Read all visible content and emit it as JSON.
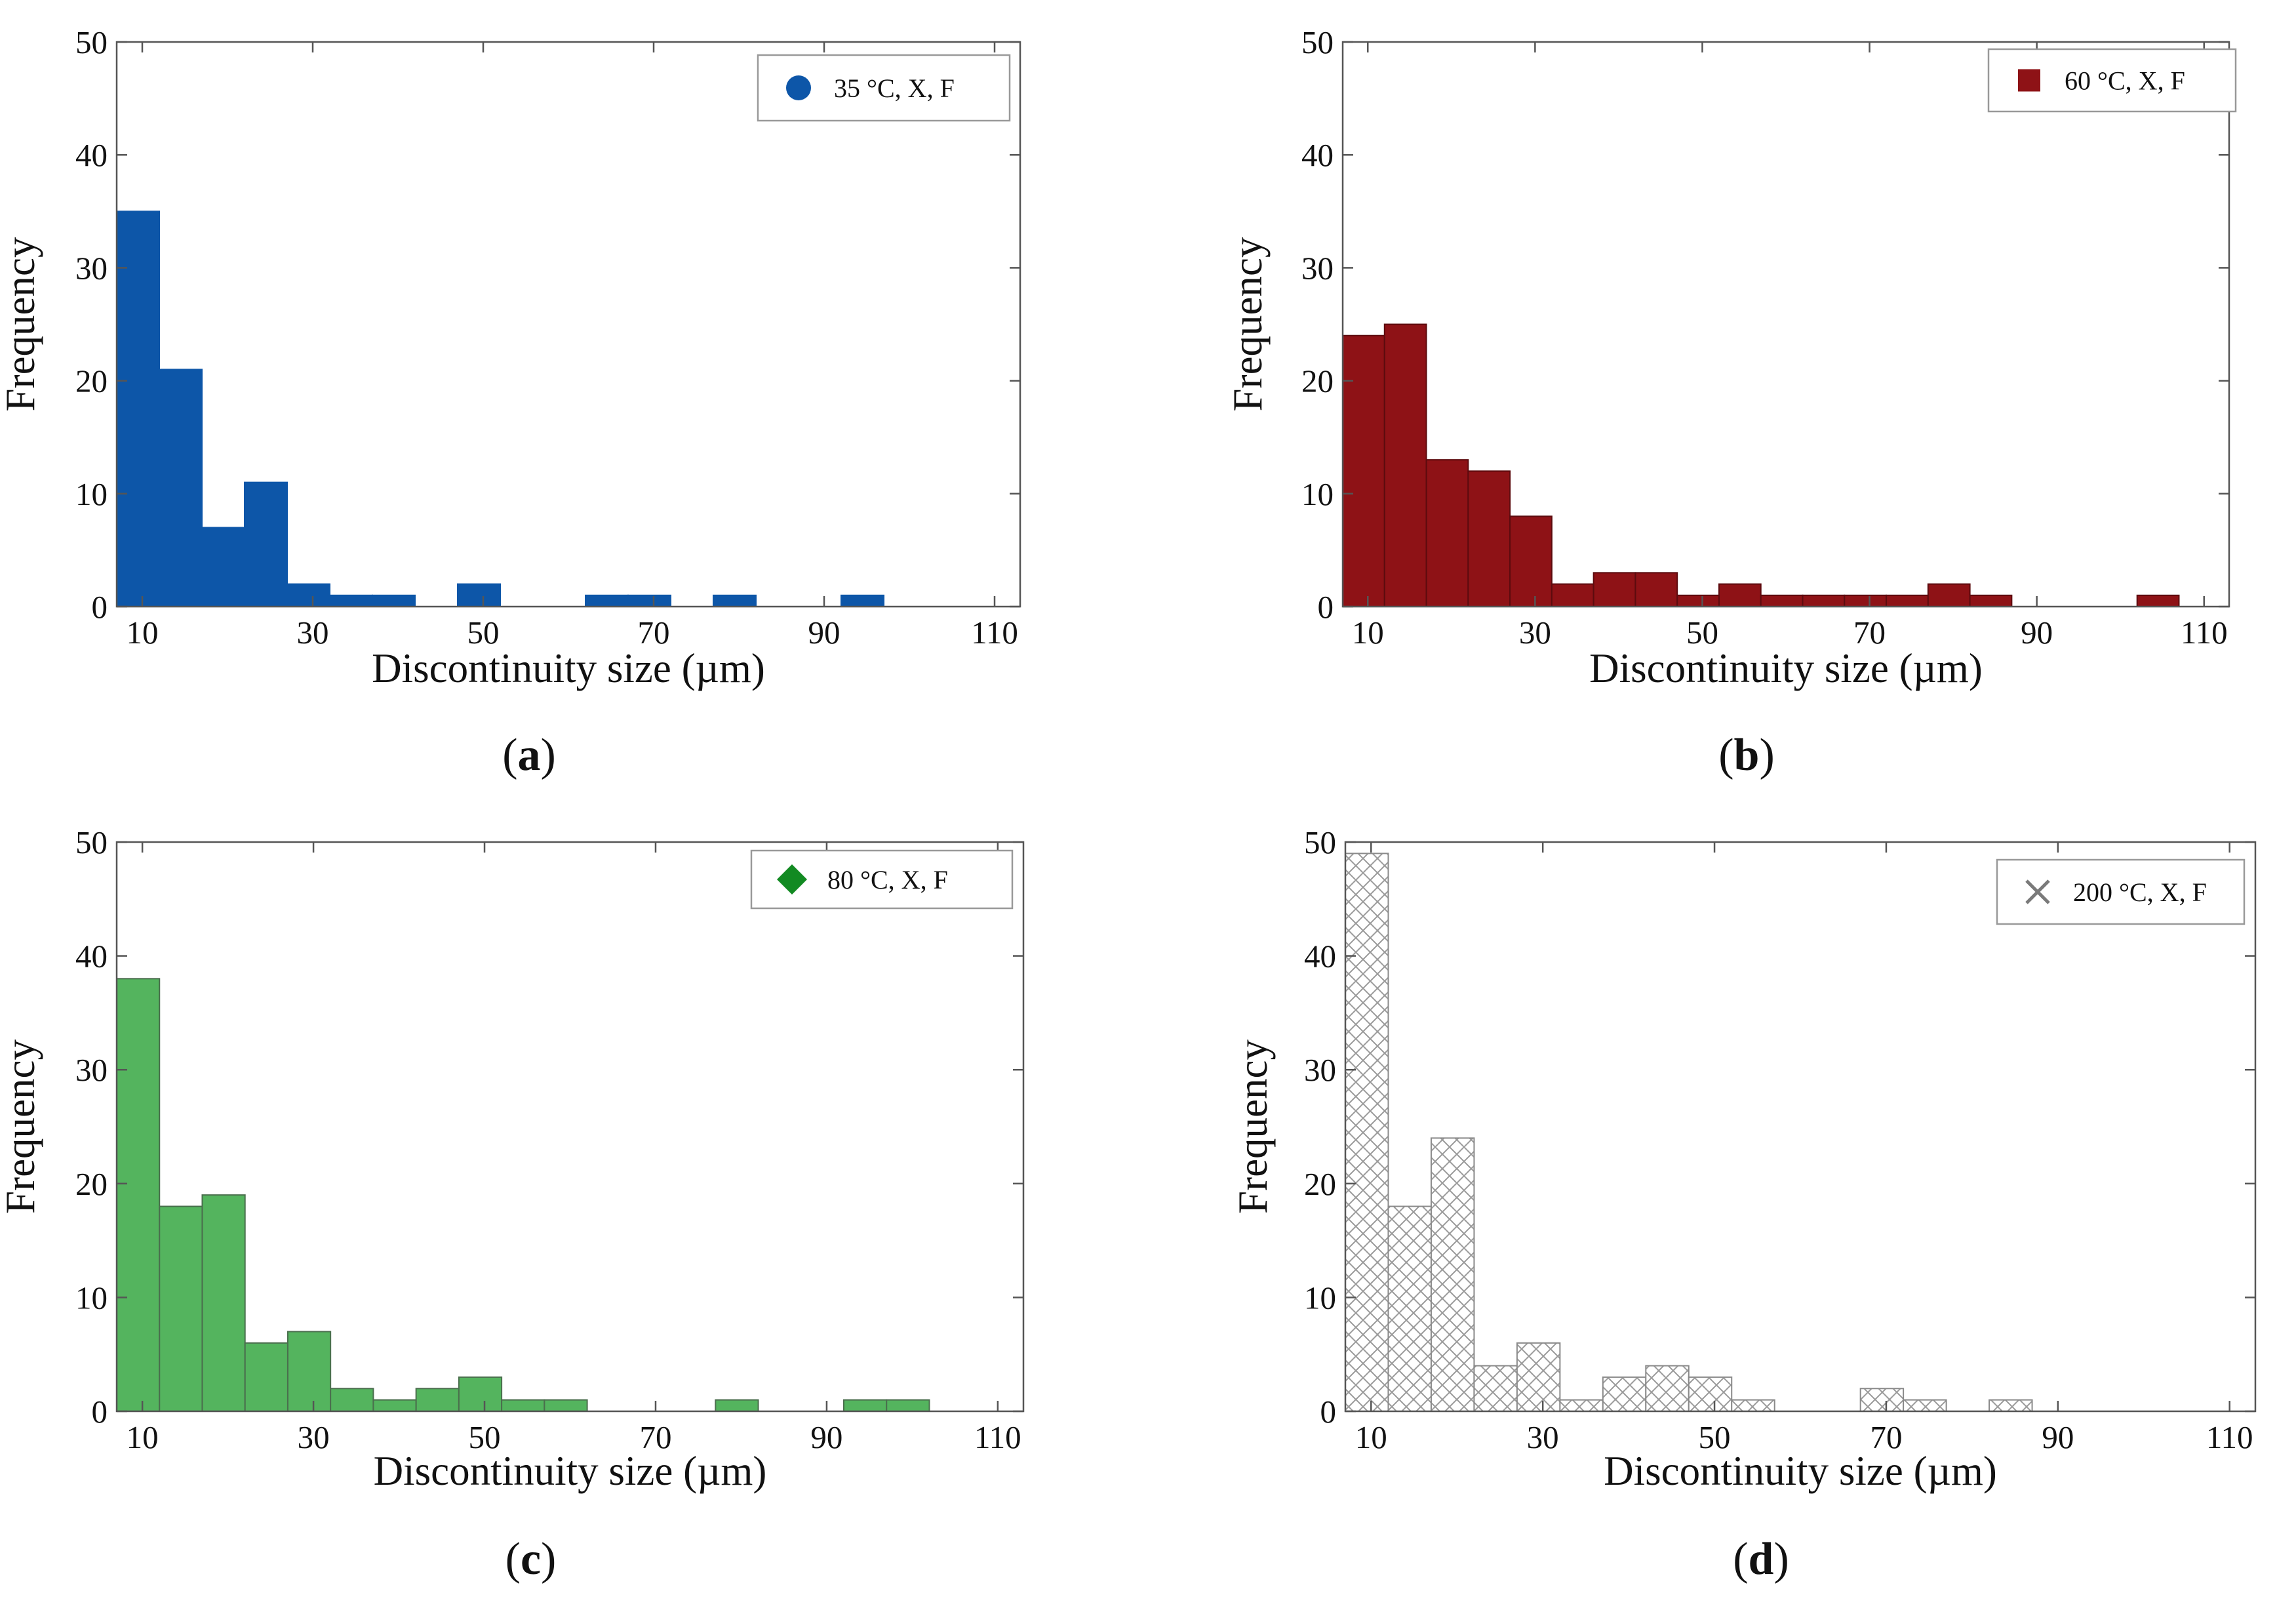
{
  "figure": {
    "x_tick_labels": [
      "10",
      "30",
      "50",
      "70",
      "90",
      "110"
    ],
    "y_tick_labels": [
      "0",
      "10",
      "20",
      "30",
      "40",
      "50"
    ]
  },
  "chart_data": [
    {
      "type": "bar",
      "panel": "a",
      "panel_label": "(a)",
      "title": "",
      "xlabel": "Discontinuity size (µm)",
      "ylabel": "Frequency",
      "xlim": [
        10,
        110
      ],
      "ylim": [
        0,
        50
      ],
      "xticks": [
        10,
        30,
        50,
        70,
        90,
        110
      ],
      "yticks": [
        0,
        10,
        20,
        30,
        40,
        50
      ],
      "bin_width": 5,
      "bins": [
        {
          "start": 7,
          "value": 35
        },
        {
          "start": 12,
          "value": 21
        },
        {
          "start": 17,
          "value": 7
        },
        {
          "start": 22,
          "value": 11
        },
        {
          "start": 27,
          "value": 2
        },
        {
          "start": 32,
          "value": 1
        },
        {
          "start": 37,
          "value": 1
        },
        {
          "start": 47,
          "value": 2
        },
        {
          "start": 62,
          "value": 1
        },
        {
          "start": 67,
          "value": 1
        },
        {
          "start": 77,
          "value": 1
        },
        {
          "start": 92,
          "value": 1
        }
      ],
      "series_name": "35 °C, X, F",
      "legend_marker": "circle",
      "legend_position": "top-right",
      "color": "#0d56a8",
      "edge_color": "#0d56a8",
      "fill_style": "solid"
    },
    {
      "type": "bar",
      "panel": "b",
      "panel_label": "(b)",
      "title": "",
      "xlabel": "Discontinuity size (µm)",
      "ylabel": "Frequency",
      "xlim": [
        10,
        110
      ],
      "ylim": [
        0,
        50
      ],
      "xticks": [
        10,
        30,
        50,
        70,
        90,
        110
      ],
      "yticks": [
        0,
        10,
        20,
        30,
        40,
        50
      ],
      "bin_width": 5,
      "bins": [
        {
          "start": 7,
          "value": 24
        },
        {
          "start": 12,
          "value": 25
        },
        {
          "start": 17,
          "value": 13
        },
        {
          "start": 22,
          "value": 12
        },
        {
          "start": 27,
          "value": 8
        },
        {
          "start": 32,
          "value": 2
        },
        {
          "start": 37,
          "value": 3
        },
        {
          "start": 42,
          "value": 3
        },
        {
          "start": 47,
          "value": 1
        },
        {
          "start": 52,
          "value": 2
        },
        {
          "start": 57,
          "value": 1
        },
        {
          "start": 62,
          "value": 1
        },
        {
          "start": 67,
          "value": 1
        },
        {
          "start": 72,
          "value": 1
        },
        {
          "start": 77,
          "value": 2
        },
        {
          "start": 82,
          "value": 1
        },
        {
          "start": 102,
          "value": 1
        }
      ],
      "series_name": "60 °C, X, F",
      "legend_marker": "square",
      "legend_position": "top-right",
      "color": "#8e1216",
      "edge_color": "#5c0b0e",
      "fill_style": "solid"
    },
    {
      "type": "bar",
      "panel": "c",
      "panel_label": "(c)",
      "title": "",
      "xlabel": "Discontinuity size (µm)",
      "ylabel": "Frequency",
      "xlim": [
        10,
        110
      ],
      "ylim": [
        0,
        50
      ],
      "xticks": [
        10,
        30,
        50,
        70,
        90,
        110
      ],
      "yticks": [
        0,
        10,
        20,
        30,
        40,
        50
      ],
      "bin_width": 5,
      "bins": [
        {
          "start": 7,
          "value": 38
        },
        {
          "start": 12,
          "value": 18
        },
        {
          "start": 17,
          "value": 19
        },
        {
          "start": 22,
          "value": 6
        },
        {
          "start": 27,
          "value": 7
        },
        {
          "start": 32,
          "value": 2
        },
        {
          "start": 37,
          "value": 1
        },
        {
          "start": 42,
          "value": 2
        },
        {
          "start": 47,
          "value": 3
        },
        {
          "start": 52,
          "value": 1
        },
        {
          "start": 57,
          "value": 1
        },
        {
          "start": 77,
          "value": 1
        },
        {
          "start": 92,
          "value": 1
        },
        {
          "start": 97,
          "value": 1
        }
      ],
      "series_name": "80 °C, X, F",
      "legend_marker": "diamond",
      "legend_position": "top-right",
      "color": "#54b45e",
      "edge_color": "#4a6e4d",
      "marker_color": "#128a22",
      "fill_style": "solid"
    },
    {
      "type": "bar",
      "panel": "d",
      "panel_label": "(d)",
      "title": "",
      "xlabel": "Discontinuity size (µm)",
      "ylabel": "Frequency",
      "xlim": [
        10,
        110
      ],
      "ylim": [
        0,
        50
      ],
      "xticks": [
        10,
        30,
        50,
        70,
        90,
        110
      ],
      "yticks": [
        0,
        10,
        20,
        30,
        40,
        50
      ],
      "bin_width": 5,
      "bins": [
        {
          "start": 7,
          "value": 49
        },
        {
          "start": 12,
          "value": 18
        },
        {
          "start": 17,
          "value": 24
        },
        {
          "start": 22,
          "value": 4
        },
        {
          "start": 27,
          "value": 6
        },
        {
          "start": 32,
          "value": 1
        },
        {
          "start": 37,
          "value": 3
        },
        {
          "start": 42,
          "value": 4
        },
        {
          "start": 47,
          "value": 3
        },
        {
          "start": 52,
          "value": 1
        },
        {
          "start": 67,
          "value": 2
        },
        {
          "start": 72,
          "value": 1
        },
        {
          "start": 82,
          "value": 1
        }
      ],
      "series_name": "200 °C, X, F",
      "legend_marker": "x",
      "legend_position": "top-right",
      "color": "#ffffff",
      "edge_color": "#8a8a8a",
      "marker_color": "#7a7a7a",
      "fill_style": "crosshatch"
    }
  ]
}
